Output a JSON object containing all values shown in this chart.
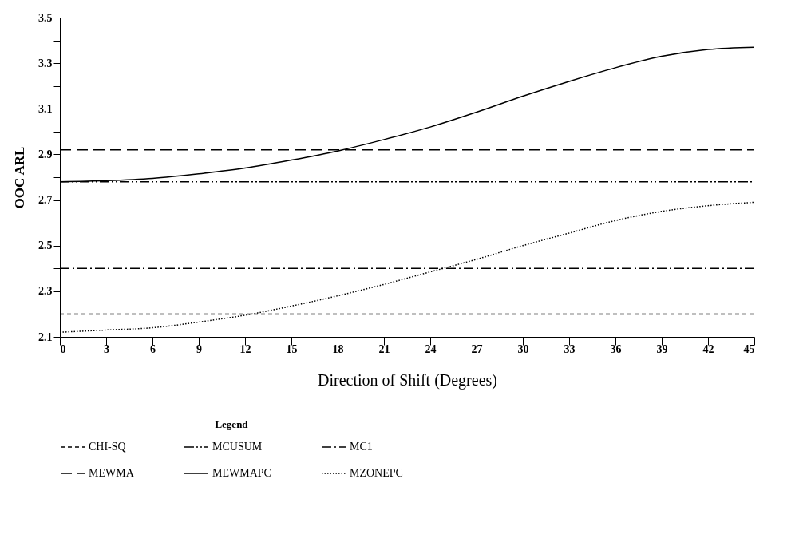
{
  "chart_data": {
    "type": "line",
    "xlabel": "Direction of Shift (Degrees)",
    "ylabel": "OOC ARL",
    "legend_title": "Legend",
    "legend": "bottom",
    "grid": false,
    "marker": "none",
    "x": [
      0,
      3,
      6,
      9,
      12,
      15,
      18,
      21,
      24,
      27,
      30,
      33,
      36,
      39,
      42,
      45
    ],
    "xlim": [
      0,
      45
    ],
    "xticks": [
      0,
      3,
      6,
      9,
      12,
      15,
      18,
      21,
      24,
      27,
      30,
      33,
      36,
      39,
      42,
      45
    ],
    "ylim": [
      2.1,
      3.5
    ],
    "yticks": [
      2.1,
      {
        "value": 2.2,
        "label": null
      },
      2.3,
      {
        "value": 2.4,
        "label": null
      },
      2.5,
      {
        "value": 2.6,
        "label": null
      },
      2.7,
      {
        "value": 2.8,
        "label": null
      },
      2.9,
      {
        "value": 3.0,
        "label": null
      },
      3.1,
      {
        "value": 3.2,
        "label": null
      },
      3.3,
      {
        "value": 3.4,
        "label": null
      },
      3.5
    ],
    "series": [
      {
        "name": "CHI-SQ",
        "color": "#000000",
        "line_style": "shortdash",
        "values": [
          2.2,
          2.2,
          2.2,
          2.2,
          2.2,
          2.2,
          2.2,
          2.2,
          2.2,
          2.2,
          2.2,
          2.2,
          2.2,
          2.2,
          2.2,
          2.2
        ]
      },
      {
        "name": "MCUSUM",
        "color": "#000000",
        "line_style": "dashdotdot",
        "values": [
          2.78,
          2.78,
          2.78,
          2.78,
          2.78,
          2.78,
          2.78,
          2.78,
          2.78,
          2.78,
          2.78,
          2.78,
          2.78,
          2.78,
          2.78,
          2.78
        ]
      },
      {
        "name": "MC1",
        "color": "#000000",
        "line_style": "dashdot",
        "values": [
          2.4,
          2.4,
          2.4,
          2.4,
          2.4,
          2.4,
          2.4,
          2.4,
          2.4,
          2.4,
          2.4,
          2.4,
          2.4,
          2.4,
          2.4,
          2.4
        ]
      },
      {
        "name": "MEWMA",
        "color": "#000000",
        "line_style": "dashed",
        "values": [
          2.92,
          2.92,
          2.92,
          2.92,
          2.92,
          2.92,
          2.92,
          2.92,
          2.92,
          2.92,
          2.92,
          2.92,
          2.92,
          2.92,
          2.92,
          2.92
        ]
      },
      {
        "name": "MEWMAPC",
        "color": "#000000",
        "line_style": "solid",
        "values": [
          2.78,
          2.785,
          2.795,
          2.815,
          2.84,
          2.875,
          2.915,
          2.965,
          3.02,
          3.085,
          3.155,
          3.22,
          3.28,
          3.33,
          3.36,
          3.37
        ]
      },
      {
        "name": "MZONEPC",
        "color": "#000000",
        "line_style": "dotted",
        "values": [
          2.12,
          2.13,
          2.14,
          2.165,
          2.195,
          2.235,
          2.28,
          2.33,
          2.385,
          2.44,
          2.5,
          2.555,
          2.61,
          2.65,
          2.675,
          2.69
        ]
      }
    ]
  }
}
